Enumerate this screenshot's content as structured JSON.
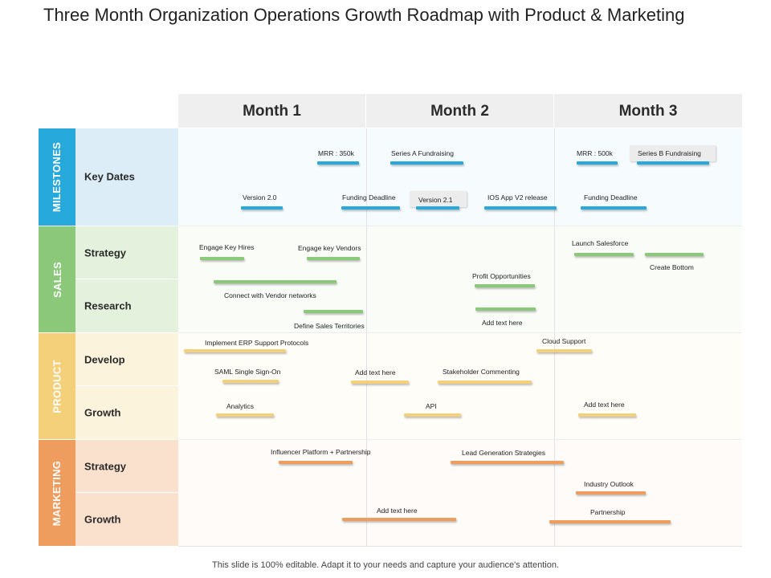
{
  "title": "Three Month Organization Operations Growth Roadmap with Product & Marketing",
  "footer": "This slide is 100% editable. Adapt it to your needs and capture your audience's attention.",
  "months": [
    "Month 1",
    "Month 2",
    "Month 3"
  ],
  "categories": [
    {
      "name": "MILESTONES",
      "color": "#27a9db",
      "bg": "#dcedf7",
      "rows": [
        "Key Dates"
      ]
    },
    {
      "name": "SALES",
      "color": "#8bc87a",
      "bg": "#e4f1dc",
      "rows": [
        "Strategy",
        "Research"
      ]
    },
    {
      "name": "PRODUCT",
      "color": "#f5d07a",
      "bg": "#fcf3dc",
      "rows": [
        "Develop",
        "Growth"
      ]
    },
    {
      "name": "MARKETING",
      "color": "#ef9d5f",
      "bg": "#fae1cd",
      "rows": [
        "Strategy",
        "Growth"
      ]
    }
  ],
  "colors": {
    "milestones": "#27a9db",
    "sales": "#8bc87a",
    "product": "#f5d07a",
    "marketing": "#ef9d5f"
  },
  "items": {
    "milestones": [
      "MRR : 350k",
      "Series A Fundraising",
      "MRR : 500k",
      "Series B Fundraising",
      "Version 2.0",
      "Funding Deadline",
      "Version 2.1",
      "IOS App V2 release",
      "Funding Deadline"
    ],
    "sales": [
      "Engage Key Hires",
      "Engage key Vendors",
      "Launch Salesforce",
      "Create Bottom",
      "Connect with Vendor networks",
      "Profit Opportunities",
      "Define Sales Territories",
      "Add text here"
    ],
    "product": [
      "Implement ERP Support Protocols",
      "Cloud Support",
      "SAML Single Sign-On",
      "Add text here",
      "Stakeholder Commenting",
      "Analytics",
      "API",
      "Add text here"
    ],
    "marketing": [
      "Influencer Platform + Partnership",
      "Lead Generation Strategies",
      "Industry Outlook",
      "Add text here",
      "Partnership"
    ]
  }
}
